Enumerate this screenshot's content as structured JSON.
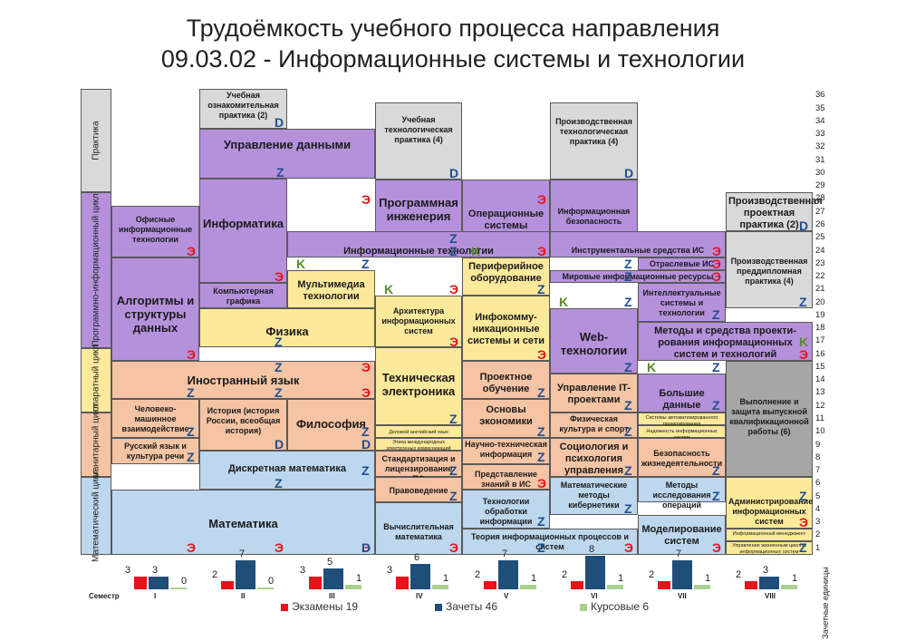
{
  "title": {
    "line1": "Трудоёмкость учебного процесса направления",
    "line2": "09.03.02 - Информационные системы и технологии"
  },
  "colors": {
    "purple": "#b591dc",
    "yellow": "#fde99a",
    "peach": "#f5c4a4",
    "blue": "#bdd7ee",
    "gray_light": "#d9d9d9",
    "gray_dark": "#a6a6a6",
    "exam": "#e8121b",
    "credit": "#1f4e79",
    "course": "#a9d18e"
  },
  "cycles": [
    {
      "label": "Практика"
    },
    {
      "label": "Программно-информационный цикл"
    },
    {
      "label": "Аппаратный цикл"
    },
    {
      "label": "Гуманитарный цикл"
    },
    {
      "label": "Математический цикл"
    }
  ],
  "units": [
    "36",
    "35",
    "34",
    "33",
    "32",
    "31",
    "30",
    "29",
    "28",
    "27",
    "26",
    "25",
    "24",
    "23",
    "22",
    "21",
    "20",
    "19",
    "18",
    "17",
    "16",
    "15",
    "14",
    "13",
    "12",
    "11",
    "10",
    "9",
    "8",
    "7",
    "6",
    "5",
    "4",
    "3",
    "2",
    "1"
  ],
  "units_axis_label": "Зачетные единицы",
  "subjects": {
    "s1": "Учебная ознакомительная практика (2)",
    "s2": "Управление данными",
    "s3": "Учебная технологическая практика (4)",
    "s4": "Производственная технологическая практика (4)",
    "s5": "Производственная проектная практика (2)",
    "s6": "Офисные информационные технологии",
    "s7": "Информатика",
    "s8": "Программная инженерия",
    "s9": "Операционные системы",
    "s10": "Информационная безопасность",
    "s11": "Информационные технологии",
    "s12": "Инструментальные средства ИС",
    "s13": "Отраслевые ИС",
    "s14": "Производственная преддипломная практика (4)",
    "s15": "Периферийное оборудование",
    "s16": "Мировые информационные ресурсы",
    "s17": "Компьютерная графика",
    "s18": "Мультимедиа технологии",
    "s19": "Алгоритмы и структуры данных",
    "s20": "Интеллектуальные системы и технологии",
    "s21": "Архитектура информационных систем",
    "s22": "Инфокомму-никационные системы и сети",
    "s23": "Физика",
    "s24": "Web-технологии",
    "s25": "Методы и средства проекти-рования информационных систем и технологий",
    "s26": "Иностранный язык",
    "s27": "Техническая электроника",
    "s28": "Проектное обучение",
    "s29": "Управление IT-проектами",
    "s30": "Большие данные",
    "s31": "Выполнение и защита выпускной квалификационной работы (6)",
    "s32": "Человеко-машинное взаимодействие",
    "s33": "История (история России, всеобщая история)",
    "s34": "Философия",
    "s35": "Основы экономики",
    "s36": "Физическая культура и спорт",
    "s37": "Системы автоматизированного проектирования",
    "s38": "Надежность информационных систем",
    "s39": "Деловой английский язык",
    "s40": "Этика международных электронных коммуникаций",
    "s41": "Русский язык и культура речи",
    "s42": "Научно-техническая информация",
    "s43": "Социология и психология управления",
    "s44": "Безопасность жизнедеятельности",
    "s45": "Стандартизация и лицензирование ПО",
    "s46": "Дискретная математика",
    "s47": "Представление знаний в ИС",
    "s48": "Правоведение",
    "s49": "Методы исследования операций",
    "s50": "Математические методы кибернетики",
    "s51": "Технологии обработки информации",
    "s52": "Администрирование информационных систем",
    "s53": "Математика",
    "s54": "Вычислительная математика",
    "s55": "Моделирование систем",
    "s56": "Информационный менеджмент",
    "s57": "Управление жизненным циклом информационных систем",
    "s58": "Теория информационных процессов и систем"
  },
  "marks": {
    "e": "Э",
    "z": "Z",
    "d": "D",
    "k": "K"
  },
  "chart_data": {
    "type": "bar",
    "x_label": "Семестр",
    "categories": [
      "I",
      "II",
      "III",
      "IV",
      "V",
      "VI",
      "VII",
      "VIII"
    ],
    "series": [
      {
        "name": "Экзамены 19",
        "values": [
          3,
          2,
          3,
          3,
          2,
          2,
          2,
          2
        ]
      },
      {
        "name": "Зачеты 46",
        "values": [
          3,
          7,
          5,
          6,
          7,
          8,
          7,
          3
        ]
      },
      {
        "name": "Курсовые 6",
        "values": [
          0,
          0,
          1,
          1,
          1,
          1,
          1,
          1
        ]
      }
    ]
  }
}
